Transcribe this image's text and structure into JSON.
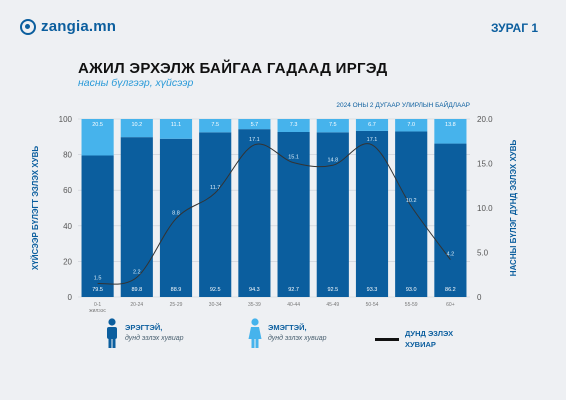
{
  "brand": {
    "name": "zangia.mn",
    "figure": "ЗУРАГ 1"
  },
  "header": {
    "title": "АЖИЛ ЭРХЭЛЖ БАЙГАА ГАДААД ИРГЭД",
    "subtitle": "насны бүлгээр, хүйсээр"
  },
  "colors": {
    "male": "#0b5e9e",
    "female": "#46b3ec",
    "line": "#333333",
    "accent": "#0b5e9e"
  },
  "chart_data": {
    "type": "bar",
    "stacked": true,
    "note": "2024 ОНЫ 2 ДУГААР УЛИРЛЫН БАЙДЛААР",
    "categories": [
      "0-1\nжилээс",
      "20-24",
      "25-29",
      "30-34",
      "35-39",
      "40-44",
      "45-49",
      "50-54",
      "55-59",
      "60+"
    ],
    "series": [
      {
        "name": "ЭРЭГТЭЙ",
        "values": [
          79.5,
          89.8,
          88.9,
          92.5,
          94.3,
          92.7,
          92.5,
          93.3,
          93.0,
          86.2
        ],
        "labels": [
          "79.5",
          "89.8",
          "88.9",
          "92.5",
          "94.3",
          "92.7",
          "92.5",
          "93.3",
          "93.0",
          "86.2"
        ]
      },
      {
        "name": "ЭМЭГТЭЙ",
        "values": [
          20.5,
          10.2,
          11.1,
          7.5,
          5.7,
          7.3,
          7.5,
          6.7,
          7.0,
          13.8
        ],
        "labels": [
          "20.5",
          "10.2",
          "11.1",
          "7.5",
          "5.7",
          "7.3",
          "7.5",
          "6.7",
          "7.0",
          "13.8"
        ]
      }
    ],
    "line": {
      "name": "ДУНД ЭЗЛЭХ ХУВИАР",
      "values": [
        1.5,
        2.2,
        8.8,
        11.7,
        17.1,
        15.1,
        14.8,
        17.1,
        10.2,
        4.2
      ],
      "labels": [
        "1.5",
        "2.2",
        "8.8",
        "11.7",
        "17.1",
        "15.1",
        "14.8",
        "17.1",
        "10.2",
        "4.2"
      ]
    },
    "ylabel": "ХҮЙСЭЭР БҮЛЭГТ ЭЗЛЭХ ХУВЬ",
    "y2label": "НАСНЫ БҮЛЭГ ДУНД ЭЗЛЭХ ХУВЬ",
    "ylim": [
      0,
      100
    ],
    "y2lim": [
      0,
      20
    ],
    "yticks": [
      "0",
      "20",
      "40",
      "60",
      "80",
      "100"
    ],
    "y2ticks": [
      "0",
      "5.0",
      "10.0",
      "15.0",
      "20.0"
    ],
    "grid": true
  },
  "legend": {
    "male": {
      "title": "ЭРЭГТЭЙ,",
      "sub": "дунд эзлэх хувиар"
    },
    "female": {
      "title": "ЭМЭГТЭЙ,",
      "sub": "дунд эзлэх хувиар"
    },
    "line": {
      "title": "ДУНД ЭЗЛЭХ",
      "title2": "ХУВИАР"
    }
  }
}
